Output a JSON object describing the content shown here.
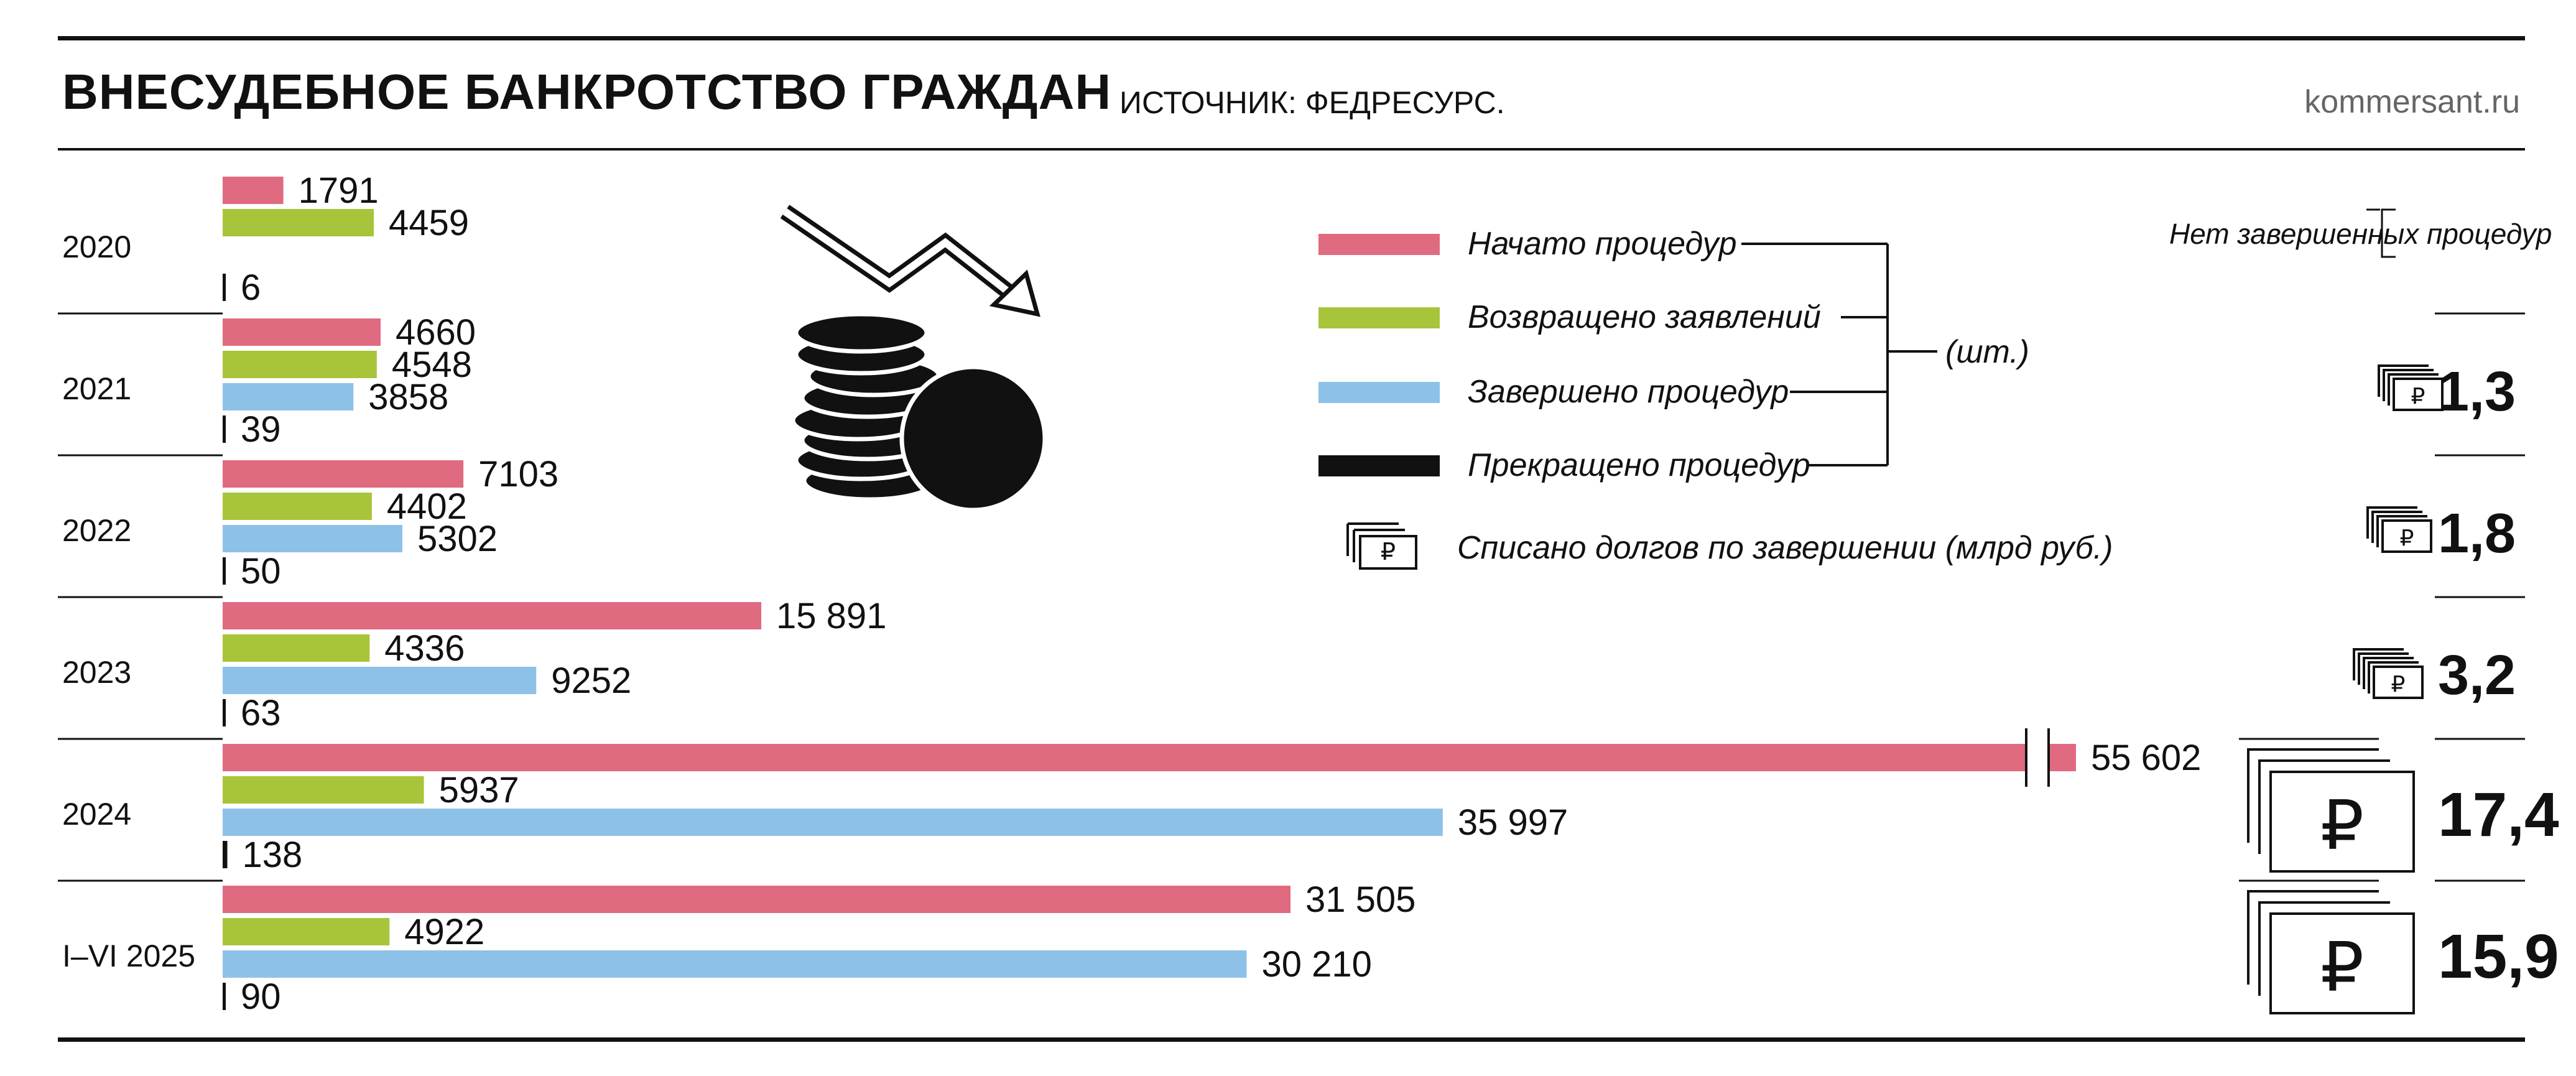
{
  "header": {
    "title": "ВНЕСУДЕБНОЕ БАНКРОТСТВО ГРАЖДАН",
    "source": "ИСТОЧНИК: ФЕДРЕСУРС.",
    "site": "kommersant.ru"
  },
  "legend": {
    "items": [
      {
        "label": "Начато процедур",
        "color": "#e06a80"
      },
      {
        "label": "Возвращено заявлений",
        "color": "#a8c43a"
      },
      {
        "label": "Завершено процедур",
        "color": "#8ec1e8"
      },
      {
        "label": "Прекращено процедур",
        "color": "#111111"
      }
    ],
    "unit": "(шт.)",
    "writeoff_label": "Списано долгов по завершении (млрд руб.)",
    "no_completed_note": "Нет завершенных процедур"
  },
  "decor": {
    "icons": [
      "arrow-down-icon",
      "coins-icon",
      "banknotes-icon"
    ]
  },
  "chart_data": {
    "type": "bar",
    "orientation": "horizontal",
    "categories": [
      "2020",
      "2021",
      "2022",
      "2023",
      "2024",
      "I–VI 2025"
    ],
    "series": [
      {
        "name": "Начато процедур",
        "color": "#e06a80",
        "values": [
          1791,
          4660,
          7103,
          15891,
          55602,
          31505
        ],
        "labels": [
          "1791",
          "4660",
          "7103",
          "15 891",
          "55 602",
          "31 505"
        ]
      },
      {
        "name": "Возвращено заявлений",
        "color": "#a8c43a",
        "values": [
          4459,
          4548,
          4402,
          4336,
          5937,
          4922
        ],
        "labels": [
          "4459",
          "4548",
          "4402",
          "4336",
          "5937",
          "4922"
        ]
      },
      {
        "name": "Завершено процедур",
        "color": "#8ec1e8",
        "values": [
          null,
          3858,
          5302,
          9252,
          35997,
          30210
        ],
        "labels": [
          "",
          "3858",
          "5302",
          "9252",
          "35 997",
          "30 210"
        ]
      },
      {
        "name": "Прекращено процедур",
        "color": "#111111",
        "values": [
          6,
          39,
          50,
          63,
          138,
          90
        ],
        "labels": [
          "6",
          "39",
          "50",
          "63",
          "138",
          "90"
        ]
      }
    ],
    "axis_break": {
      "series": "Начато процедур",
      "category": "2024"
    },
    "writeoff": {
      "name": "Списано долгов по завершении (млрд руб.)",
      "values": [
        null,
        1.3,
        1.8,
        3.2,
        17.4,
        15.9
      ],
      "labels": [
        "",
        "1,3",
        "1,8",
        "3,2",
        "17,4",
        "15,9"
      ]
    },
    "grid": false,
    "legend_position": "top-center"
  }
}
